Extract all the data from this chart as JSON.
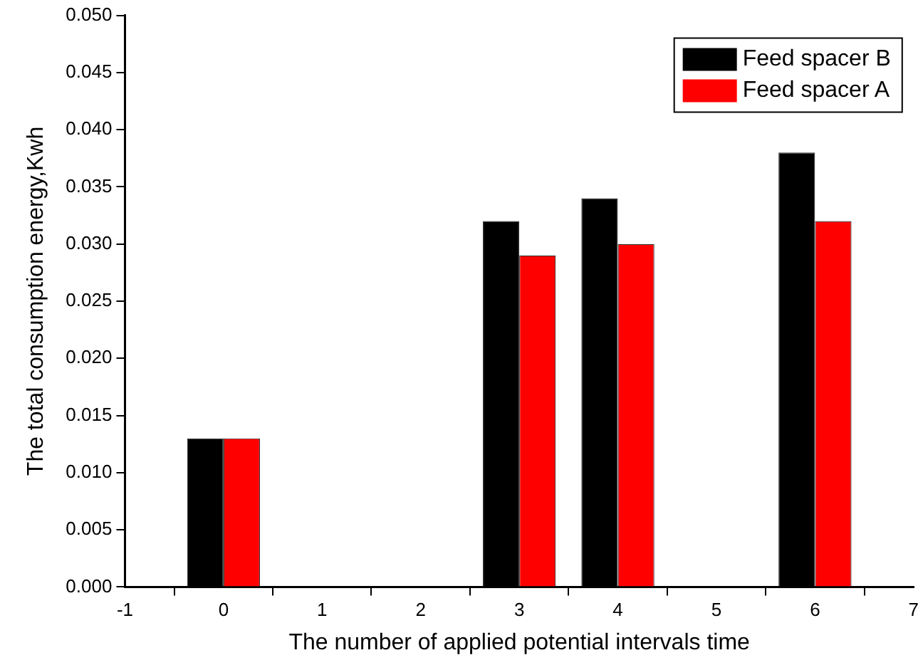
{
  "chart_data": {
    "type": "bar",
    "xlabel": "The number of applied potential intervals time",
    "ylabel": "The total consumption energy,Kwh",
    "x": [
      0,
      3,
      4,
      6
    ],
    "series": [
      {
        "name": "Feed spacer B",
        "color": "#000000",
        "values": [
          0.013,
          0.032,
          0.034,
          0.038
        ]
      },
      {
        "name": "Feed spacer A",
        "color": "#ff0000",
        "values": [
          0.013,
          0.029,
          0.03,
          0.032
        ]
      }
    ],
    "xlim": [
      -1,
      7
    ],
    "xticks": [
      -1,
      0,
      1,
      2,
      3,
      4,
      5,
      6,
      7
    ],
    "ylim": [
      0,
      0.05
    ],
    "yticks": [
      {
        "value": 0,
        "label": "0.000"
      },
      {
        "value": 0.005,
        "label": "0.005"
      },
      {
        "value": 0.01,
        "label": "0.010"
      },
      {
        "value": 0.015,
        "label": "0.015"
      },
      {
        "value": 0.02,
        "label": "0.020"
      },
      {
        "value": 0.025,
        "label": "0.025"
      },
      {
        "value": 0.03,
        "label": "0.030"
      },
      {
        "value": 0.035,
        "label": "0.035"
      },
      {
        "value": 0.04,
        "label": "0.040"
      },
      {
        "value": 0.045,
        "label": "0.045"
      },
      {
        "value": 0.05,
        "label": "0.050"
      }
    ],
    "grid": false,
    "legend": "top right"
  }
}
